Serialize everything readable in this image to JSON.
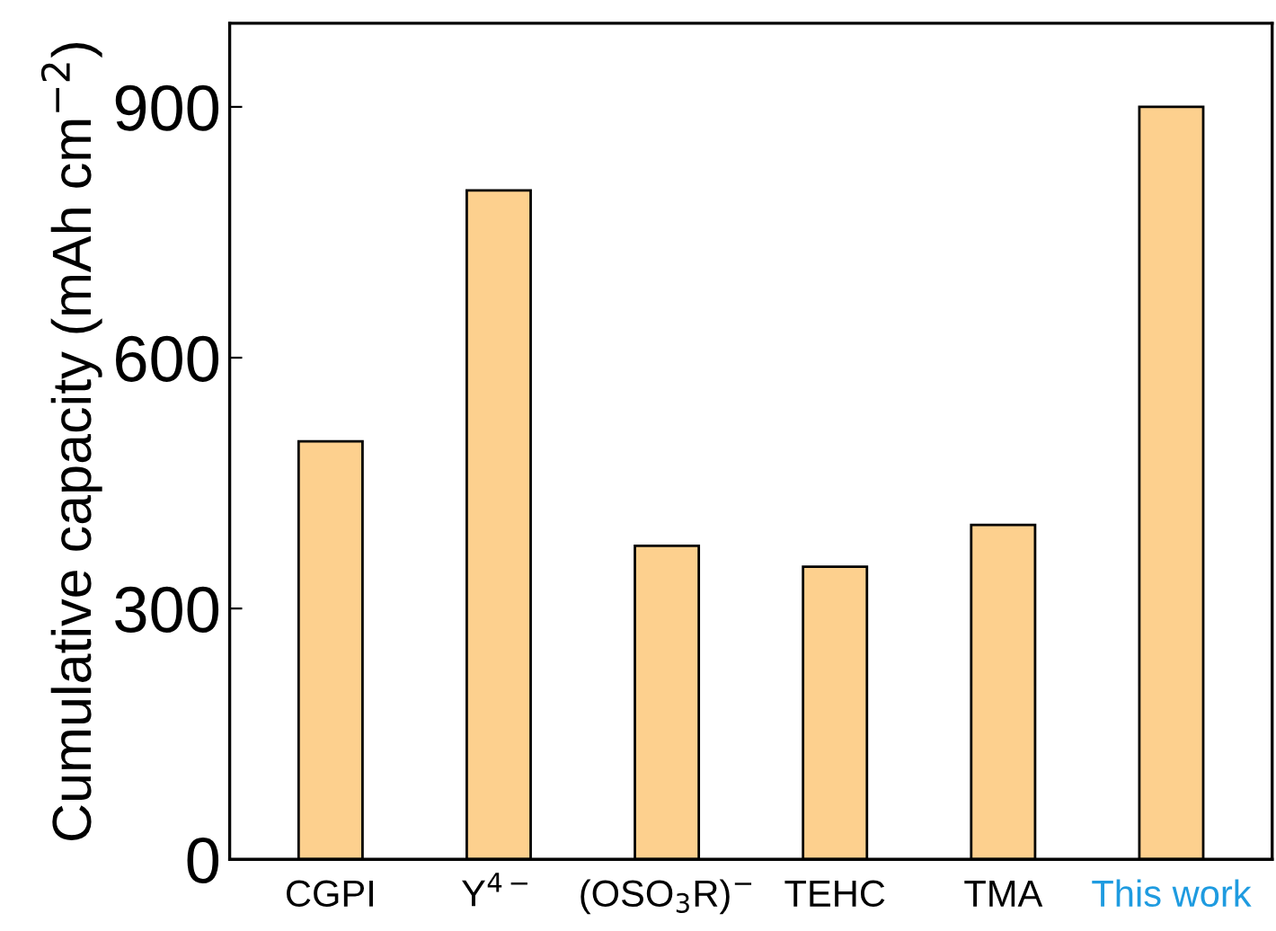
{
  "chart_data": {
    "type": "bar",
    "categories": [
      "CGPI",
      "Y$^{4−}$",
      "(OSO$_{3}$R)$^{−}$",
      "TEHC",
      "TMA",
      "This work"
    ],
    "values": [
      500,
      800,
      375,
      350,
      400,
      900
    ],
    "color": "#fdd08e",
    "ylabel": "Cumulative capacity (mAh cm$^{−2}$)",
    "ylim": [
      0,
      1000
    ],
    "yticks": [
      0,
      300,
      600,
      900
    ],
    "grid": false
  }
}
